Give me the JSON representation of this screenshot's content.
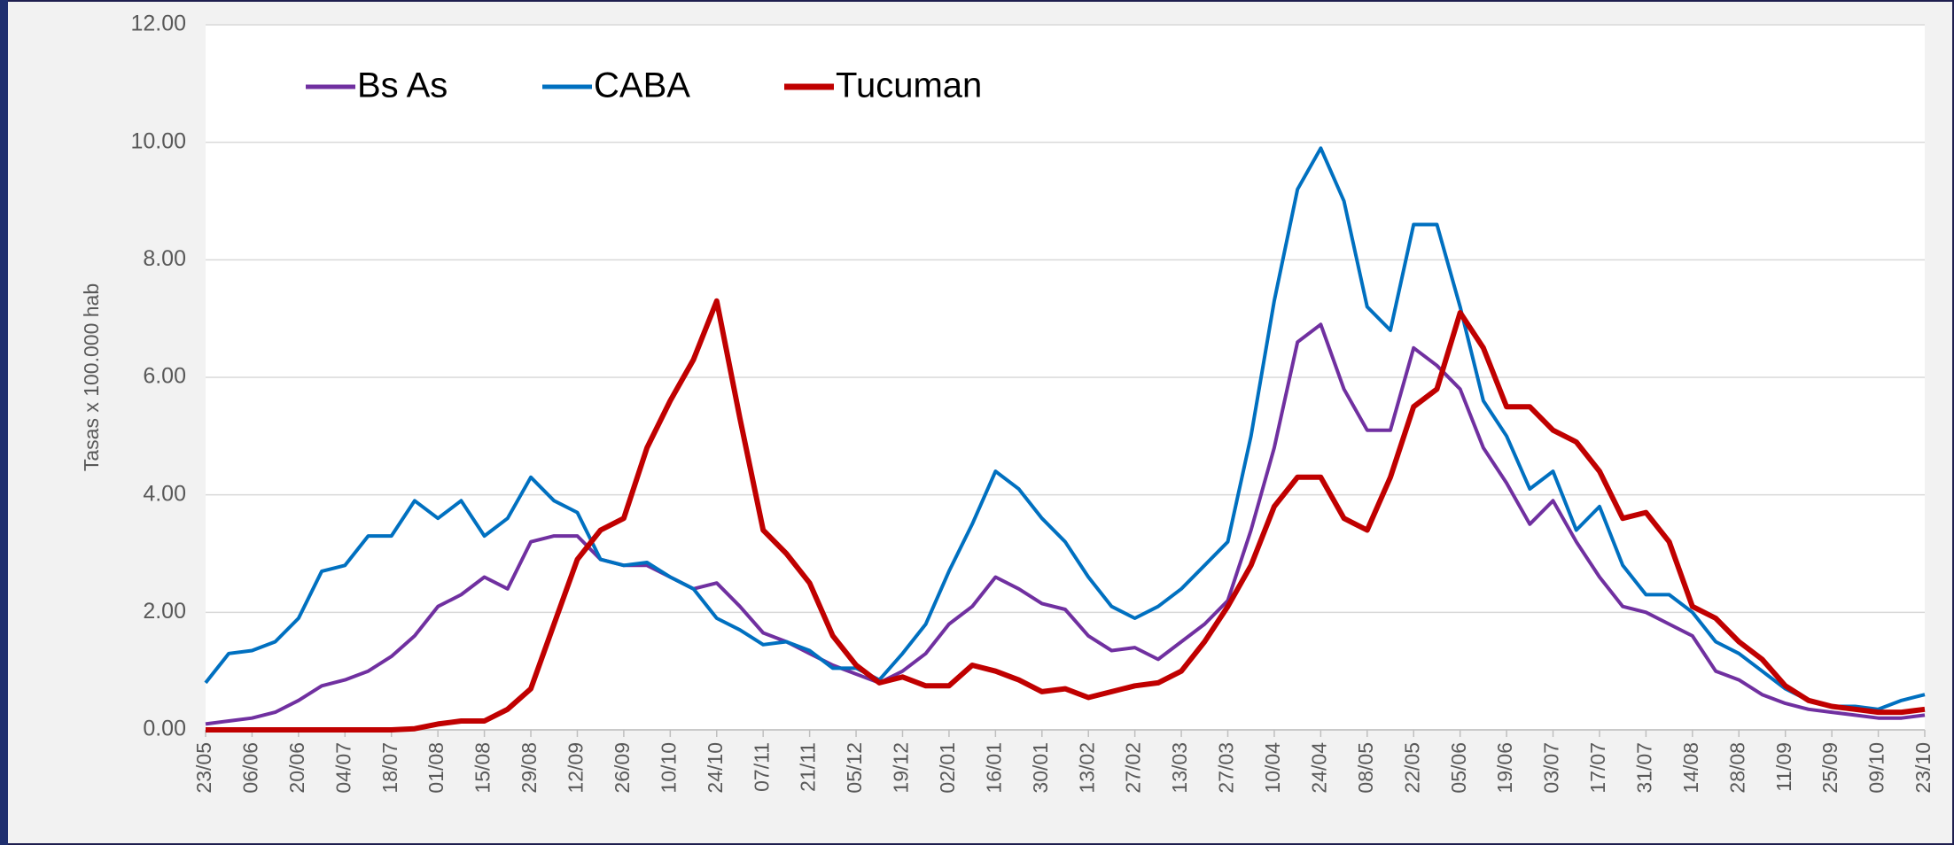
{
  "chart_data": {
    "type": "line",
    "y_label": "Tasas x 100.000 hab",
    "categories": [
      "23/05",
      null,
      "06/06",
      null,
      "20/06",
      null,
      "04/07",
      null,
      "18/07",
      null,
      "01/08",
      null,
      "15/08",
      null,
      "29/08",
      null,
      "12/09",
      null,
      "26/09",
      null,
      "10/10",
      null,
      "24/10",
      null,
      "07/11",
      null,
      "21/11",
      null,
      "05/12",
      null,
      "19/12",
      null,
      "02/01",
      null,
      "16/01",
      null,
      "30/01",
      null,
      "13/02",
      null,
      "27/02",
      null,
      "13/03",
      null,
      "27/03",
      null,
      "10/04",
      null,
      "24/04",
      null,
      "08/05",
      null,
      "22/05",
      null,
      "05/06",
      null,
      "19/06",
      null,
      "03/07",
      null,
      "17/07",
      null,
      "31/07",
      null,
      "14/08",
      null,
      "28/08",
      null,
      "11/09",
      null,
      "25/09",
      null,
      "09/10",
      null,
      "23/10"
    ],
    "series": [
      {
        "name": "Bs As",
        "color": "#7030a0",
        "width": 4,
        "values": [
          0.1,
          0.15,
          0.2,
          0.3,
          0.5,
          0.75,
          0.85,
          1.0,
          1.25,
          1.6,
          2.1,
          2.3,
          2.6,
          2.4,
          3.2,
          3.3,
          3.3,
          2.9,
          2.8,
          2.8,
          2.6,
          2.4,
          2.5,
          2.1,
          1.65,
          1.5,
          1.3,
          1.1,
          0.95,
          0.8,
          1.0,
          1.3,
          1.8,
          2.1,
          2.6,
          2.4,
          2.15,
          2.05,
          1.6,
          1.35,
          1.4,
          1.2,
          1.5,
          1.8,
          2.2,
          3.4,
          4.8,
          6.6,
          6.9,
          5.8,
          5.1,
          5.1,
          6.5,
          6.2,
          5.8,
          4.8,
          4.2,
          3.5,
          3.9,
          3.2,
          2.6,
          2.1,
          2.0,
          1.8,
          1.6,
          1.0,
          0.85,
          0.6,
          0.45,
          0.35,
          0.3,
          0.25,
          0.2,
          0.2,
          0.25
        ]
      },
      {
        "name": "CABA",
        "color": "#0070c0",
        "width": 4,
        "values": [
          0.8,
          1.3,
          1.35,
          1.5,
          1.9,
          2.7,
          2.8,
          3.3,
          3.3,
          3.9,
          3.6,
          3.9,
          3.3,
          3.6,
          4.3,
          3.9,
          3.7,
          2.9,
          2.8,
          2.85,
          2.6,
          2.4,
          1.9,
          1.7,
          1.45,
          1.5,
          1.35,
          1.05,
          1.05,
          0.85,
          1.3,
          1.8,
          2.7,
          3.5,
          4.4,
          4.1,
          3.6,
          3.2,
          2.6,
          2.1,
          1.9,
          2.1,
          2.4,
          2.8,
          3.2,
          5.0,
          7.3,
          9.2,
          9.9,
          9.0,
          7.2,
          6.8,
          8.6,
          8.6,
          7.2,
          5.6,
          5.0,
          4.1,
          4.4,
          3.4,
          3.8,
          2.8,
          2.3,
          2.3,
          2.0,
          1.5,
          1.3,
          1.0,
          0.7,
          0.5,
          0.4,
          0.4,
          0.35,
          0.5,
          0.6
        ]
      },
      {
        "name": "Tucuman",
        "color": "#c00000",
        "width": 6,
        "values": [
          0,
          0,
          0,
          0,
          0,
          0,
          0,
          0,
          0,
          0.02,
          0.1,
          0.15,
          0.15,
          0.35,
          0.7,
          1.8,
          2.9,
          3.4,
          3.6,
          4.8,
          5.6,
          6.3,
          7.3,
          5.3,
          3.4,
          3.0,
          2.5,
          1.6,
          1.1,
          0.8,
          0.9,
          0.75,
          0.75,
          1.1,
          1.0,
          0.85,
          0.65,
          0.7,
          0.55,
          0.65,
          0.75,
          0.8,
          1.0,
          1.5,
          2.1,
          2.8,
          3.8,
          4.3,
          4.3,
          3.6,
          3.4,
          4.3,
          5.5,
          5.8,
          7.1,
          6.5,
          5.5,
          5.5,
          5.1,
          4.9,
          4.4,
          3.6,
          3.7,
          3.2,
          2.1,
          1.9,
          1.5,
          1.2,
          0.75,
          0.5,
          0.4,
          0.35,
          0.3,
          0.3,
          0.35
        ]
      }
    ],
    "ylim": [
      0,
      12
    ],
    "yticks": [
      {
        "value": 0,
        "label": "0.00"
      },
      {
        "value": 2,
        "label": "2.00"
      },
      {
        "value": 4,
        "label": "4.00"
      },
      {
        "value": 6,
        "label": "6.00"
      },
      {
        "value": 8,
        "label": "8.00"
      },
      {
        "value": 10,
        "label": "10.00"
      },
      {
        "value": 12,
        "label": "12.00"
      }
    ],
    "grid": true,
    "legend": "top-left"
  }
}
